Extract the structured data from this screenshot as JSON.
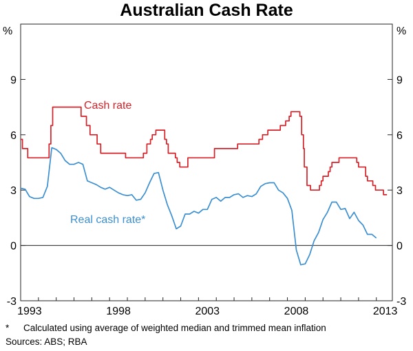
{
  "chart_data": {
    "type": "line",
    "title": "Australian Cash Rate",
    "y_unit_left": "%",
    "y_unit_right": "%",
    "ylim": [
      -3,
      12
    ],
    "yticks": [
      -3,
      0,
      3,
      6,
      9
    ],
    "xlim": [
      1993.0,
      2013.9
    ],
    "xticks": [
      1993,
      1998,
      2003,
      2008,
      2013
    ],
    "grid": false,
    "colors": {
      "cash_rate": "#d62027",
      "real_cash_rate": "#3b8fd0"
    },
    "series": [
      {
        "name": "Cash rate",
        "key": "cash_rate",
        "step": true,
        "points": [
          [
            1993.0,
            5.75
          ],
          [
            1993.1,
            5.25
          ],
          [
            1993.4,
            4.75
          ],
          [
            1994.6,
            5.5
          ],
          [
            1994.7,
            6.5
          ],
          [
            1994.8,
            7.5
          ],
          [
            1996.4,
            7.0
          ],
          [
            1996.7,
            6.5
          ],
          [
            1996.9,
            6.0
          ],
          [
            1997.3,
            5.5
          ],
          [
            1997.5,
            5.0
          ],
          [
            1998.9,
            4.75
          ],
          [
            1999.9,
            5.0
          ],
          [
            2000.1,
            5.5
          ],
          [
            2000.3,
            5.75
          ],
          [
            2000.4,
            6.0
          ],
          [
            2000.6,
            6.25
          ],
          [
            2001.1,
            5.75
          ],
          [
            2001.2,
            5.5
          ],
          [
            2001.3,
            5.0
          ],
          [
            2001.7,
            4.75
          ],
          [
            2001.8,
            4.5
          ],
          [
            2001.95,
            4.25
          ],
          [
            2002.4,
            4.75
          ],
          [
            2003.9,
            5.25
          ],
          [
            2005.2,
            5.5
          ],
          [
            2006.4,
            5.75
          ],
          [
            2006.6,
            6.0
          ],
          [
            2006.9,
            6.25
          ],
          [
            2007.6,
            6.5
          ],
          [
            2007.9,
            6.75
          ],
          [
            2008.1,
            7.0
          ],
          [
            2008.2,
            7.25
          ],
          [
            2008.7,
            7.0
          ],
          [
            2008.8,
            6.0
          ],
          [
            2008.9,
            5.25
          ],
          [
            2008.95,
            4.25
          ],
          [
            2009.1,
            3.25
          ],
          [
            2009.3,
            3.0
          ],
          [
            2009.8,
            3.25
          ],
          [
            2009.9,
            3.5
          ],
          [
            2010.0,
            3.75
          ],
          [
            2010.3,
            4.0
          ],
          [
            2010.4,
            4.25
          ],
          [
            2010.5,
            4.5
          ],
          [
            2010.9,
            4.75
          ],
          [
            2011.9,
            4.5
          ],
          [
            2012.0,
            4.25
          ],
          [
            2012.4,
            3.75
          ],
          [
            2012.5,
            3.5
          ],
          [
            2012.8,
            3.25
          ],
          [
            2012.95,
            3.0
          ],
          [
            2013.4,
            2.75
          ],
          [
            2013.6,
            2.75
          ]
        ]
      },
      {
        "name": "Real cash rate*",
        "key": "real_cash_rate",
        "step": false,
        "points": [
          [
            1993.0,
            3.1
          ],
          [
            1993.25,
            3.05
          ],
          [
            1993.5,
            2.65
          ],
          [
            1993.75,
            2.55
          ],
          [
            1994.0,
            2.55
          ],
          [
            1994.25,
            2.6
          ],
          [
            1994.5,
            3.2
          ],
          [
            1994.75,
            5.3
          ],
          [
            1995.0,
            5.2
          ],
          [
            1995.25,
            5.0
          ],
          [
            1995.5,
            4.6
          ],
          [
            1995.75,
            4.4
          ],
          [
            1996.0,
            4.4
          ],
          [
            1996.25,
            4.5
          ],
          [
            1996.5,
            4.4
          ],
          [
            1996.75,
            3.5
          ],
          [
            1997.0,
            3.4
          ],
          [
            1997.25,
            3.3
          ],
          [
            1997.5,
            3.15
          ],
          [
            1997.75,
            3.05
          ],
          [
            1998.0,
            3.15
          ],
          [
            1998.25,
            3.0
          ],
          [
            1998.5,
            2.85
          ],
          [
            1998.75,
            2.75
          ],
          [
            1999.0,
            2.7
          ],
          [
            1999.25,
            2.75
          ],
          [
            1999.5,
            2.45
          ],
          [
            1999.75,
            2.5
          ],
          [
            2000.0,
            2.85
          ],
          [
            2000.25,
            3.4
          ],
          [
            2000.5,
            3.9
          ],
          [
            2000.75,
            3.95
          ],
          [
            2001.0,
            3.0
          ],
          [
            2001.25,
            2.2
          ],
          [
            2001.5,
            1.6
          ],
          [
            2001.75,
            0.9
          ],
          [
            2002.0,
            1.05
          ],
          [
            2002.25,
            1.7
          ],
          [
            2002.5,
            1.7
          ],
          [
            2002.75,
            1.85
          ],
          [
            2003.0,
            1.75
          ],
          [
            2003.25,
            1.95
          ],
          [
            2003.5,
            1.95
          ],
          [
            2003.75,
            2.5
          ],
          [
            2004.0,
            2.6
          ],
          [
            2004.25,
            2.4
          ],
          [
            2004.5,
            2.6
          ],
          [
            2004.75,
            2.6
          ],
          [
            2005.0,
            2.75
          ],
          [
            2005.25,
            2.8
          ],
          [
            2005.5,
            2.6
          ],
          [
            2005.75,
            2.7
          ],
          [
            2006.0,
            2.65
          ],
          [
            2006.25,
            2.8
          ],
          [
            2006.5,
            3.2
          ],
          [
            2006.75,
            3.35
          ],
          [
            2007.0,
            3.4
          ],
          [
            2007.25,
            3.4
          ],
          [
            2007.5,
            3.0
          ],
          [
            2007.75,
            2.85
          ],
          [
            2008.0,
            2.55
          ],
          [
            2008.25,
            1.9
          ],
          [
            2008.5,
            -0.25
          ],
          [
            2008.75,
            -1.05
          ],
          [
            2009.0,
            -1.0
          ],
          [
            2009.25,
            -0.5
          ],
          [
            2009.5,
            0.25
          ],
          [
            2009.75,
            0.7
          ],
          [
            2010.0,
            1.4
          ],
          [
            2010.25,
            1.8
          ],
          [
            2010.5,
            2.35
          ],
          [
            2010.75,
            2.35
          ],
          [
            2011.0,
            1.95
          ],
          [
            2011.25,
            2.0
          ],
          [
            2011.5,
            1.45
          ],
          [
            2011.75,
            1.8
          ],
          [
            2012.0,
            1.35
          ],
          [
            2012.25,
            1.1
          ],
          [
            2012.5,
            0.6
          ],
          [
            2012.75,
            0.6
          ],
          [
            2013.0,
            0.4
          ]
        ]
      }
    ],
    "annotations": {
      "cash_rate_label": "Cash rate",
      "real_cash_rate_label": "Real cash rate*"
    }
  },
  "footnote": {
    "marker": "*",
    "text": "Calculated using average of weighted median and trimmed mean inflation"
  },
  "sources": "Sources: ABS; RBA"
}
